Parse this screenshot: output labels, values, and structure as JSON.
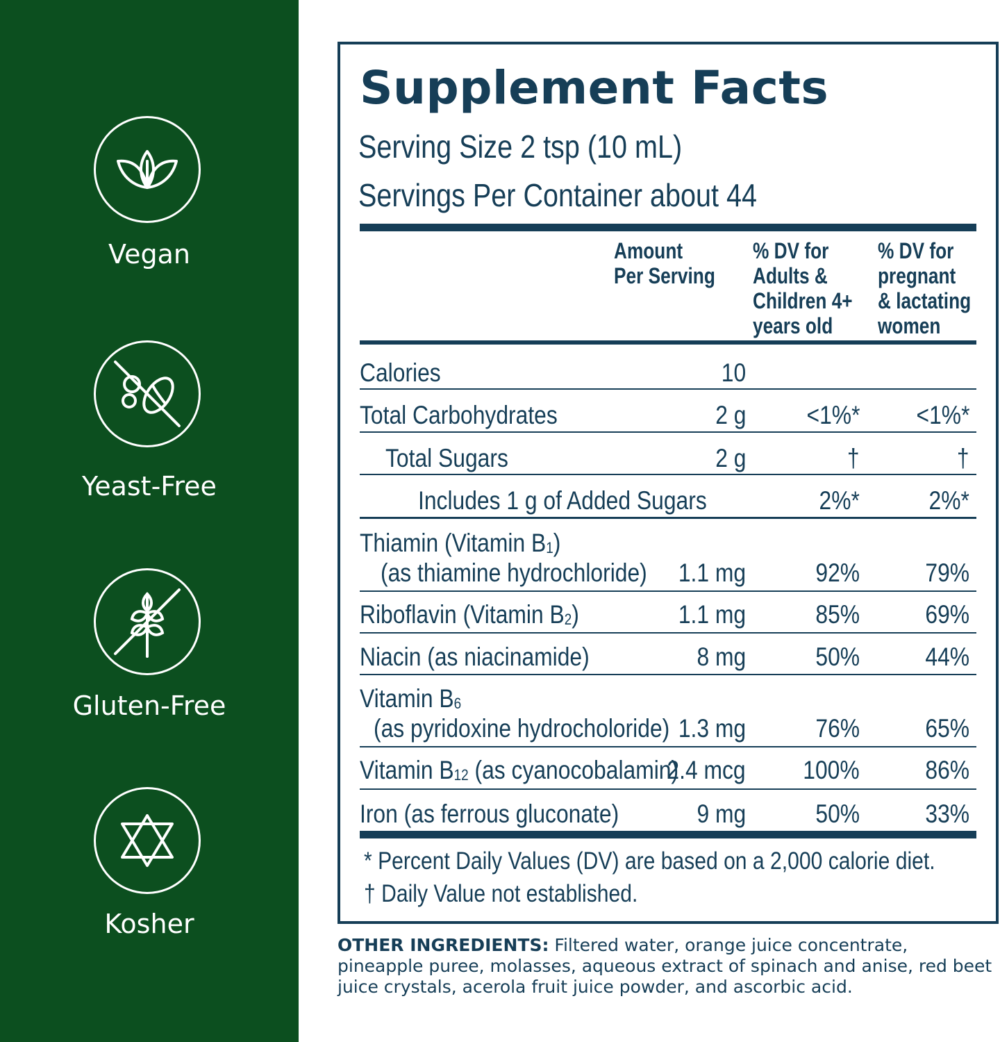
{
  "badges": [
    {
      "label": "Vegan",
      "icon": "leaf-icon"
    },
    {
      "label": "Yeast-Free",
      "icon": "no-yeast-icon"
    },
    {
      "label": "Gluten-Free",
      "icon": "no-wheat-icon"
    },
    {
      "label": "Kosher",
      "icon": "star-of-david-icon"
    }
  ],
  "colors": {
    "sidebar": "#0c4f1f",
    "ink": "#163e57"
  },
  "facts": {
    "title": "Supplement Facts",
    "serving_size": "Serving Size 2 tsp (10 mL)",
    "servings_per_container": "Servings Per Container about 44",
    "columns": {
      "amount": [
        "Amount",
        "Per Serving"
      ],
      "dv_adults": [
        "% DV for",
        "Adults &",
        "Children 4+",
        "years old"
      ],
      "dv_pregnant": [
        "% DV for",
        "pregnant",
        "& lactating",
        "women"
      ]
    },
    "rows": [
      {
        "name": "Calories",
        "amount": "10",
        "dv_adults": "",
        "dv_pregnant": ""
      },
      {
        "name": "Total Carbohydrates",
        "amount": "2 g",
        "dv_adults": "<1%*",
        "dv_pregnant": "<1%*"
      },
      {
        "name": "Total Sugars",
        "amount": "2 g",
        "dv_adults": "†",
        "dv_pregnant": "†"
      },
      {
        "name": "Includes 1 g of Added Sugars",
        "amount": "",
        "dv_adults": "2%*",
        "dv_pregnant": "2%*"
      },
      {
        "name": "Thiamin (Vitamin B",
        "name_sub": "1",
        "name_after": ")",
        "source": "(as thiamine hydrochloride)",
        "amount": "1.1 mg",
        "dv_adults": "92%",
        "dv_pregnant": "79%"
      },
      {
        "name": "Riboflavin (Vitamin B",
        "name_sub": "2",
        "name_after": ")",
        "amount": "1.1 mg",
        "dv_adults": "85%",
        "dv_pregnant": "69%"
      },
      {
        "name": "Niacin (as niacinamide)",
        "amount": "8 mg",
        "dv_adults": "50%",
        "dv_pregnant": "44%"
      },
      {
        "name": "Vitamin B",
        "name_sub": "6",
        "source": "(as pyridoxine hydrocholoride)",
        "amount": "1.3 mg",
        "dv_adults": "76%",
        "dv_pregnant": "65%"
      },
      {
        "name": "Vitamin B",
        "name_sub": "12",
        "name_after": " (as cyanocobalamin)",
        "amount": "2.4 mcg",
        "dv_adults": "100%",
        "dv_pregnant": "86%"
      },
      {
        "name": "Iron (as ferrous gluconate)",
        "amount": "9 mg",
        "dv_adults": "50%",
        "dv_pregnant": "33%"
      }
    ],
    "footnotes": [
      "* Percent Daily Values (DV) are based on a 2,000 calorie diet.",
      "† Daily Value not established."
    ]
  },
  "other_ingredients": {
    "label": "OTHER INGREDIENTS:",
    "text": " Filtered water, orange juice concentrate, pineapple puree, molasses, aqueous extract of spinach and anise, red beet juice crystals, acerola fruit juice powder, and ascorbic acid."
  }
}
